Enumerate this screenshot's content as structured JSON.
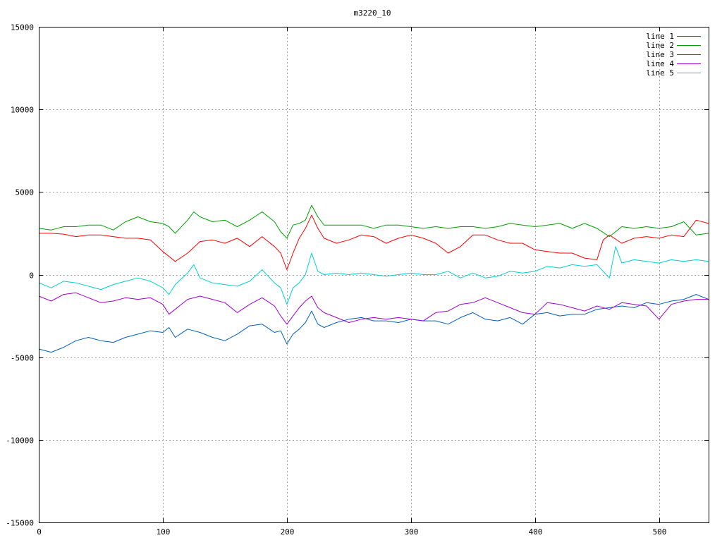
{
  "chart_data": {
    "type": "line",
    "title": "m3220_10",
    "xlabel": "",
    "ylabel": "",
    "xlim": [
      0,
      540
    ],
    "ylim": [
      -15000,
      15000
    ],
    "x_ticks": [
      0,
      100,
      200,
      300,
      400,
      500
    ],
    "x_tick_labels": [
      "0",
      "100",
      "200",
      "300",
      "400",
      "500"
    ],
    "y_ticks": [
      -15000,
      -10000,
      -5000,
      0,
      5000,
      10000,
      15000
    ],
    "y_tick_labels": [
      "-15000",
      "-10000",
      "-5000",
      "0",
      "5000",
      "10000",
      "15000"
    ],
    "grid": true,
    "legend_position": "top-right",
    "series": [
      {
        "name": "line 1",
        "color": "#ff0000",
        "x": [
          0,
          10,
          20,
          30,
          40,
          50,
          60,
          70,
          80,
          90,
          100,
          105,
          110,
          120,
          130,
          140,
          150,
          160,
          170,
          180,
          190,
          195,
          200,
          205,
          210,
          215,
          220,
          225,
          230,
          240,
          250,
          260,
          270,
          280,
          290,
          300,
          310,
          320,
          330,
          340,
          350,
          360,
          370,
          380,
          390,
          400,
          410,
          420,
          430,
          440,
          450,
          455,
          460,
          470,
          480,
          490,
          500,
          510,
          520,
          530,
          540
        ],
        "y": [
          2500,
          2500,
          2450,
          2300,
          2400,
          2400,
          2300,
          2200,
          2200,
          2100,
          1400,
          1100,
          800,
          1300,
          2000,
          2100,
          1900,
          2200,
          1700,
          2300,
          1700,
          1300,
          300,
          1300,
          2200,
          2800,
          3600,
          2800,
          2200,
          1900,
          2100,
          2400,
          2300,
          1900,
          2200,
          2400,
          2200,
          1900,
          1300,
          1700,
          2400,
          2400,
          2100,
          1900,
          1900,
          1500,
          1400,
          1300,
          1300,
          1000,
          900,
          2100,
          2400,
          1900,
          2200,
          2300,
          2200,
          2400,
          2300,
          3300,
          3100
        ]
      },
      {
        "name": "line 2",
        "color": "#00a000",
        "x": [
          0,
          10,
          20,
          30,
          40,
          50,
          60,
          70,
          80,
          90,
          100,
          105,
          110,
          120,
          125,
          130,
          140,
          150,
          160,
          170,
          180,
          190,
          195,
          200,
          205,
          210,
          215,
          220,
          225,
          230,
          240,
          250,
          260,
          270,
          280,
          290,
          300,
          310,
          320,
          330,
          340,
          350,
          360,
          370,
          380,
          390,
          400,
          410,
          420,
          430,
          440,
          450,
          460,
          470,
          480,
          490,
          500,
          510,
          520,
          530,
          540
        ],
        "y": [
          2800,
          2700,
          2900,
          2900,
          3000,
          3000,
          2700,
          3200,
          3500,
          3200,
          3100,
          2900,
          2500,
          3300,
          3800,
          3500,
          3200,
          3300,
          2900,
          3300,
          3800,
          3200,
          2600,
          2200,
          3000,
          3100,
          3300,
          4200,
          3500,
          3000,
          3000,
          3000,
          3000,
          2800,
          3000,
          3000,
          2900,
          2800,
          2900,
          2800,
          2900,
          2900,
          2800,
          2900,
          3100,
          3000,
          2900,
          3000,
          3100,
          2800,
          3100,
          2800,
          2300,
          2900,
          2800,
          2900,
          2800,
          2900,
          3200,
          2400,
          2500
        ]
      },
      {
        "name": "line 3",
        "color": "#0060c0",
        "x": [
          0,
          10,
          20,
          30,
          40,
          50,
          60,
          70,
          80,
          90,
          100,
          105,
          110,
          120,
          130,
          140,
          150,
          160,
          170,
          180,
          190,
          195,
          200,
          205,
          210,
          215,
          220,
          225,
          230,
          240,
          250,
          260,
          270,
          280,
          290,
          300,
          310,
          320,
          330,
          340,
          350,
          360,
          370,
          380,
          390,
          400,
          410,
          420,
          430,
          440,
          450,
          460,
          470,
          480,
          490,
          500,
          510,
          520,
          530,
          540
        ],
        "y": [
          -4500,
          -4700,
          -4400,
          -4000,
          -3800,
          -4000,
          -4100,
          -3800,
          -3600,
          -3400,
          -3500,
          -3200,
          -3800,
          -3300,
          -3500,
          -3800,
          -4000,
          -3600,
          -3100,
          -3000,
          -3500,
          -3400,
          -4200,
          -3600,
          -3300,
          -2900,
          -2200,
          -3000,
          -3200,
          -2900,
          -2700,
          -2600,
          -2800,
          -2800,
          -2900,
          -2700,
          -2800,
          -2800,
          -3000,
          -2600,
          -2300,
          -2700,
          -2800,
          -2600,
          -3000,
          -2400,
          -2300,
          -2500,
          -2400,
          -2400,
          -2100,
          -2000,
          -1900,
          -2000,
          -1700,
          -1800,
          -1600,
          -1500,
          -1200,
          -1500
        ]
      },
      {
        "name": "line 4",
        "color": "#a000d0",
        "x": [
          0,
          10,
          20,
          30,
          40,
          50,
          60,
          70,
          80,
          90,
          100,
          105,
          110,
          120,
          130,
          140,
          150,
          160,
          170,
          180,
          190,
          195,
          200,
          205,
          210,
          215,
          220,
          225,
          230,
          240,
          250,
          260,
          270,
          280,
          290,
          300,
          310,
          320,
          330,
          340,
          350,
          360,
          370,
          380,
          390,
          400,
          410,
          420,
          430,
          440,
          450,
          460,
          470,
          480,
          490,
          500,
          510,
          520,
          530,
          540
        ],
        "y": [
          -1300,
          -1600,
          -1200,
          -1100,
          -1400,
          -1700,
          -1600,
          -1400,
          -1500,
          -1400,
          -1800,
          -2400,
          -2100,
          -1500,
          -1300,
          -1500,
          -1700,
          -2300,
          -1800,
          -1400,
          -1900,
          -2500,
          -3000,
          -2500,
          -2000,
          -1600,
          -1300,
          -2000,
          -2300,
          -2600,
          -2900,
          -2700,
          -2600,
          -2700,
          -2600,
          -2700,
          -2800,
          -2300,
          -2200,
          -1800,
          -1700,
          -1400,
          -1700,
          -2000,
          -2300,
          -2400,
          -1700,
          -1800,
          -2000,
          -2200,
          -1900,
          -2100,
          -1700,
          -1800,
          -1900,
          -2700,
          -1800,
          -1600,
          -1500,
          -1500
        ]
      },
      {
        "name": "line 5",
        "color": "#00d0d0",
        "x": [
          0,
          10,
          20,
          30,
          40,
          50,
          60,
          70,
          80,
          90,
          100,
          105,
          110,
          120,
          125,
          130,
          140,
          150,
          160,
          170,
          180,
          190,
          195,
          200,
          205,
          210,
          215,
          220,
          225,
          230,
          240,
          250,
          260,
          270,
          280,
          290,
          300,
          310,
          320,
          330,
          340,
          350,
          360,
          370,
          380,
          390,
          400,
          410,
          420,
          430,
          440,
          450,
          460,
          465,
          470,
          480,
          490,
          500,
          510,
          520,
          530,
          540
        ],
        "y": [
          -500,
          -800,
          -400,
          -500,
          -700,
          -900,
          -600,
          -400,
          -200,
          -400,
          -800,
          -1200,
          -600,
          100,
          600,
          -200,
          -500,
          -600,
          -700,
          -400,
          300,
          -500,
          -800,
          -1800,
          -800,
          -500,
          0,
          1300,
          200,
          0,
          100,
          0,
          100,
          0,
          -100,
          0,
          100,
          0,
          0,
          200,
          -200,
          100,
          -200,
          -100,
          200,
          100,
          200,
          500,
          400,
          600,
          500,
          600,
          -200,
          1700,
          700,
          900,
          800,
          700,
          900,
          800,
          900,
          800
        ]
      }
    ]
  }
}
